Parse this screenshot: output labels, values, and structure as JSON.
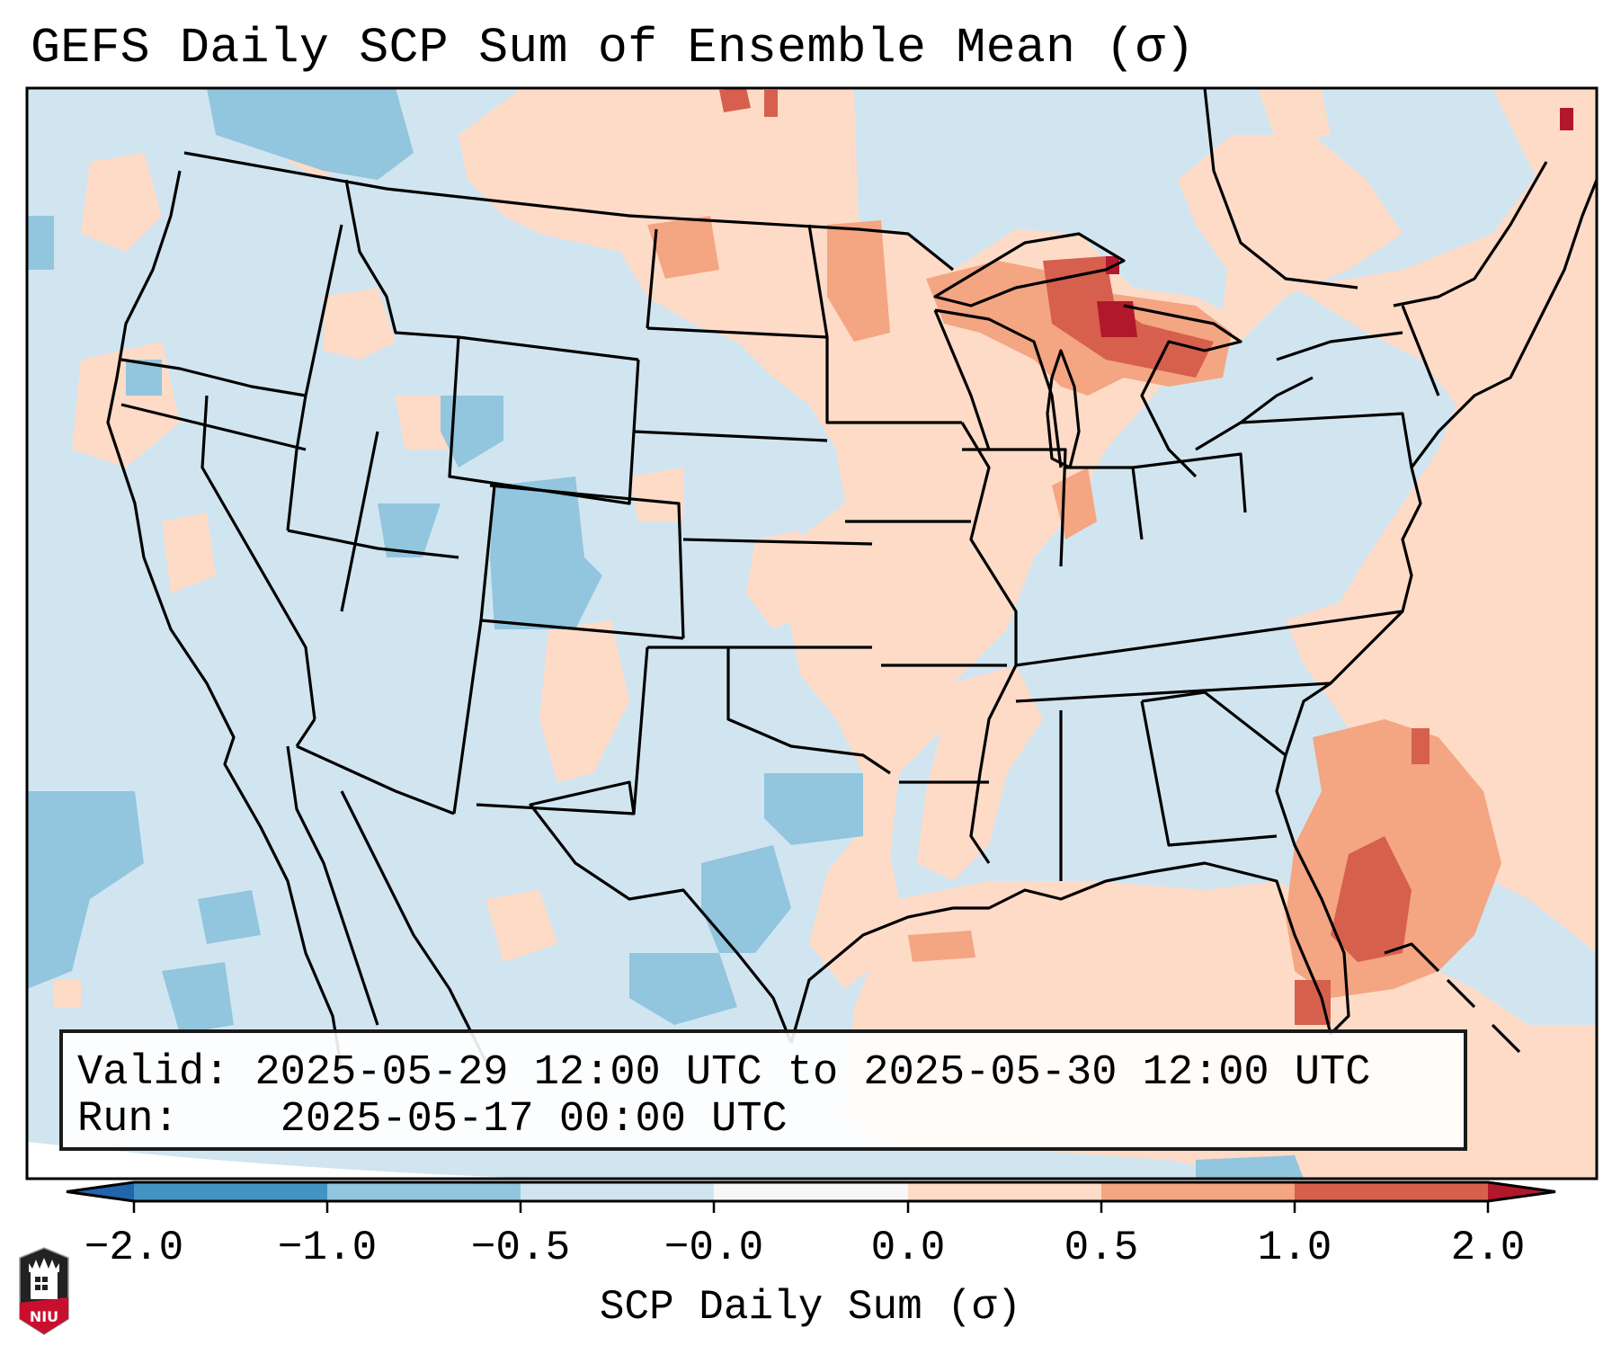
{
  "figure": {
    "title": "GEFS Daily SCP Sum of Ensemble Mean (σ)",
    "info_box": {
      "valid_label": "Valid:",
      "valid_value": "2025-05-29 12:00 UTC to 2025-05-30 12:00 UTC",
      "run_label": "Run:",
      "run_value": "2025-05-17 00:00 UTC"
    },
    "map": {
      "region": "Contiguous United States with surrounding Canada, Mexico, Gulf of Mexico and western Atlantic",
      "features": [
        "state borders",
        "coastlines",
        "Great Lakes",
        "Bahamas",
        "Cuba (under info box)"
      ],
      "highlights": [
        {
          "area": "Upper Great Lakes / northern Michigan",
          "category": "1.0 to 2.0+"
        },
        {
          "area": "Atlantic east of Florida",
          "category": "0.5 to 2.0"
        },
        {
          "area": "Northern Plains / North Dakota",
          "category": "0.5 to 2.0"
        },
        {
          "area": "Colorado / Utah Rockies",
          "category": "-1.0 to -0.5"
        },
        {
          "area": "Central Texas / northern Mexico",
          "category": "-1.0 to -0.5"
        },
        {
          "area": "Eastern Pacific off Baja",
          "category": "-1.0 to -0.5"
        }
      ]
    },
    "colorbar": {
      "label": "SCP Daily Sum (σ)",
      "ticks": [
        "−2.0",
        "−1.0",
        "−0.5",
        "−0.0",
        "0.0",
        "0.5",
        "1.0",
        "2.0"
      ],
      "bins": [
        {
          "range": "< −2.0",
          "color": "#2166ac"
        },
        {
          "range": "−2.0 to −1.0",
          "color": "#4393c3"
        },
        {
          "range": "−1.0 to −0.5",
          "color": "#92c5de"
        },
        {
          "range": "−0.5 to −0.0",
          "color": "#d1e5f0"
        },
        {
          "range": "−0.0 to 0.0",
          "color": "#f7f7f7"
        },
        {
          "range": "0.0 to 0.5",
          "color": "#fddbc7"
        },
        {
          "range": "0.5 to 1.0",
          "color": "#f4a582"
        },
        {
          "range": "1.0 to 2.0",
          "color": "#d6604d"
        },
        {
          "range": "> 2.0",
          "color": "#b2182b"
        }
      ],
      "extend": "both"
    },
    "logo": {
      "text": "NIU",
      "icon": "niu-logo-icon"
    }
  }
}
